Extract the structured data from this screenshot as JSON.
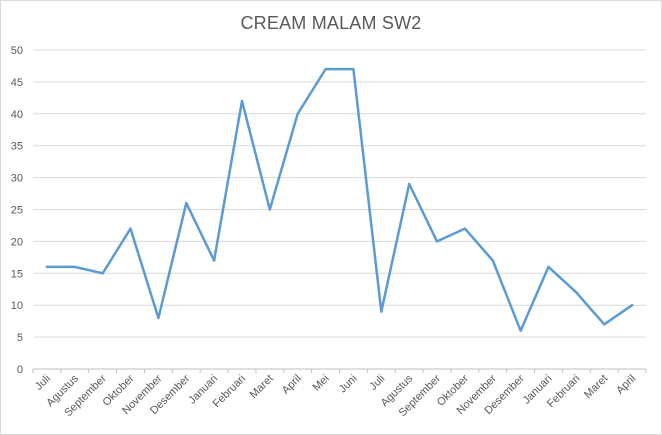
{
  "chart_data": {
    "type": "line",
    "title": "CREAM MALAM SW2",
    "xlabel": "",
    "ylabel": "",
    "categories": [
      "Juli",
      "Agustus",
      "September",
      "Oktober",
      "November",
      "Desember",
      "Januari",
      "Februari",
      "Maret",
      "April",
      "Mei",
      "Juni",
      "Juli",
      "Agustus",
      "September",
      "Oktober",
      "November",
      "Desember",
      "Januari",
      "Februari",
      "Maret",
      "April"
    ],
    "series": [
      {
        "values": [
          16,
          16,
          15,
          22,
          8,
          26,
          17,
          42,
          25,
          40,
          47,
          47,
          9,
          29,
          20,
          22,
          17,
          6,
          16,
          12,
          7,
          10
        ],
        "color": "#5b9bd5"
      }
    ],
    "ylim": [
      0,
      50
    ],
    "yticks": [
      0,
      5,
      10,
      15,
      20,
      25,
      30,
      35,
      40,
      45,
      50
    ],
    "grid": true,
    "legend": "none"
  }
}
